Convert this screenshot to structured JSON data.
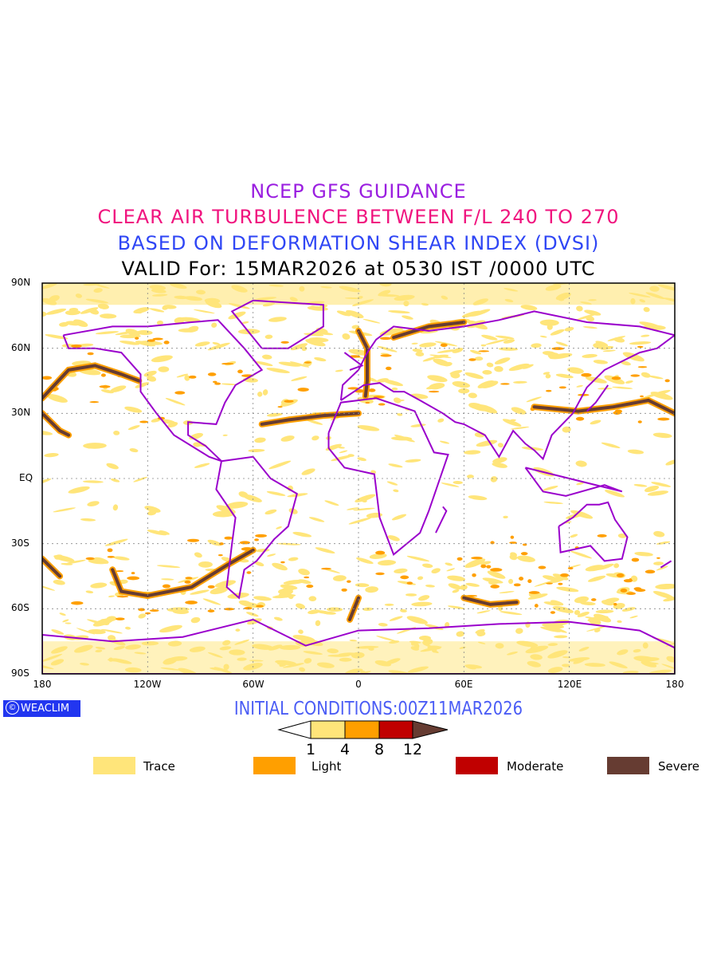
{
  "titles": {
    "line1": "NCEP GFS GUIDANCE",
    "line2": "CLEAR AIR TURBULENCE BETWEEN F/L 240 TO 270",
    "line3": "BASED ON DEFORMATION SHEAR INDEX (DVSI)",
    "line4": "VALID For: 15MAR2026 at 0530 IST /0000 UTC"
  },
  "axes": {
    "lat_labels": [
      "90N",
      "60N",
      "30N",
      "EQ",
      "30S",
      "60S",
      "90S"
    ],
    "lon_labels": [
      "180",
      "120W",
      "60W",
      "0",
      "60E",
      "120E",
      "180"
    ]
  },
  "branding": {
    "logo_symbol": "©",
    "logo_text": "WEACLIM"
  },
  "initial_conditions": "INITIAL CONDITIONS:00Z11MAR2026",
  "colorbar": {
    "ticks": [
      "1",
      "4",
      "8",
      "12"
    ],
    "colors": [
      "#ffffff",
      "#ffe57a",
      "#ff9f00",
      "#c00000",
      "#663c32"
    ]
  },
  "legend": [
    {
      "label": "Trace",
      "color": "#ffe57a"
    },
    {
      "label": "Light",
      "color": "#ff9f00"
    },
    {
      "label": "Moderate",
      "color": "#c00000"
    },
    {
      "label": "Severe",
      "color": "#663c32"
    }
  ],
  "colors": {
    "coastline": "#9a00cc",
    "grid": "#888888"
  }
}
